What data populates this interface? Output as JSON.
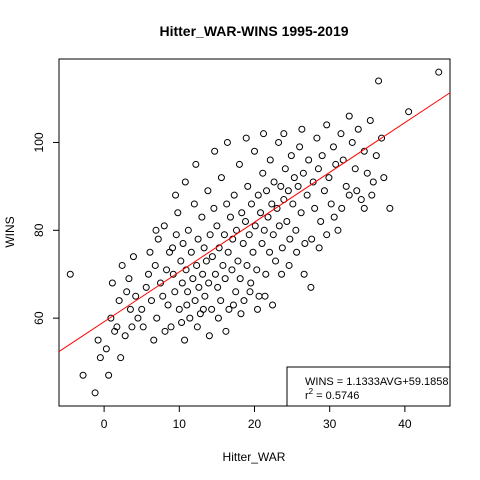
{
  "chart_data": {
    "type": "scatter",
    "title": "Hitter_WAR-WINS 1995-2019",
    "xlabel": "Hitter_WAR",
    "ylabel": "WINS",
    "xlim": [
      -6,
      46
    ],
    "ylim": [
      40,
      119
    ],
    "x_ticks": [
      0,
      10,
      20,
      30,
      40
    ],
    "y_ticks": [
      60,
      80,
      100
    ],
    "grid": false,
    "regression_line": {
      "slope": 1.1333,
      "intercept": 59.1858,
      "color": "#ff0000"
    },
    "legend": {
      "position": "bottom-right",
      "equation": "WINS = 1.1333AVG+59.1858",
      "r2_prefix": "r",
      "r2_sup": "2",
      "r2_value": " = 0.5746"
    },
    "point_color": "#000000",
    "points": [
      [
        -4.5,
        70
      ],
      [
        -2.8,
        47
      ],
      [
        -1.2,
        43
      ],
      [
        -0.8,
        55
      ],
      [
        -0.5,
        51
      ],
      [
        0.3,
        53
      ],
      [
        0.6,
        47
      ],
      [
        0.9,
        60
      ],
      [
        1.1,
        68
      ],
      [
        1.4,
        57
      ],
      [
        1.7,
        58
      ],
      [
        2.2,
        51
      ],
      [
        2.0,
        64
      ],
      [
        2.4,
        72
      ],
      [
        2.8,
        56
      ],
      [
        3.0,
        66
      ],
      [
        3.3,
        69
      ],
      [
        3.5,
        62
      ],
      [
        3.7,
        58
      ],
      [
        3.9,
        74
      ],
      [
        4.2,
        65
      ],
      [
        4.5,
        60
      ],
      [
        5.0,
        62
      ],
      [
        5.2,
        58
      ],
      [
        5.6,
        67
      ],
      [
        5.9,
        70
      ],
      [
        6.1,
        75
      ],
      [
        6.3,
        64
      ],
      [
        6.6,
        55
      ],
      [
        6.8,
        72
      ],
      [
        7.0,
        60
      ],
      [
        7.2,
        78
      ],
      [
        7.5,
        68
      ],
      [
        7.8,
        65
      ],
      [
        8.0,
        81
      ],
      [
        8.3,
        71
      ],
      [
        8.5,
        63
      ],
      [
        8.7,
        75
      ],
      [
        8.9,
        58
      ],
      [
        9.2,
        70
      ],
      [
        9.4,
        66
      ],
      [
        9.6,
        79
      ],
      [
        9.8,
        84
      ],
      [
        10.0,
        62
      ],
      [
        10.2,
        73
      ],
      [
        10.4,
        68
      ],
      [
        10.5,
        77
      ],
      [
        10.7,
        55
      ],
      [
        10.9,
        71
      ],
      [
        11.1,
        66
      ],
      [
        11.2,
        80
      ],
      [
        11.4,
        60
      ],
      [
        11.6,
        75
      ],
      [
        11.8,
        69
      ],
      [
        12.0,
        86
      ],
      [
        12.1,
        64
      ],
      [
        12.3,
        72
      ],
      [
        12.5,
        78
      ],
      [
        12.6,
        67
      ],
      [
        12.8,
        61
      ],
      [
        13.0,
        83
      ],
      [
        13.1,
        70
      ],
      [
        13.3,
        76
      ],
      [
        13.4,
        65
      ],
      [
        13.6,
        73
      ],
      [
        13.8,
        89
      ],
      [
        13.9,
        68
      ],
      [
        14.1,
        79
      ],
      [
        14.3,
        62
      ],
      [
        14.4,
        74
      ],
      [
        14.6,
        85
      ],
      [
        14.8,
        70
      ],
      [
        15.0,
        81
      ],
      [
        15.1,
        67
      ],
      [
        15.3,
        76
      ],
      [
        15.5,
        64
      ],
      [
        15.6,
        92
      ],
      [
        15.8,
        72
      ],
      [
        16.0,
        79
      ],
      [
        16.1,
        69
      ],
      [
        16.3,
        86
      ],
      [
        16.5,
        75
      ],
      [
        16.6,
        62
      ],
      [
        16.8,
        83
      ],
      [
        17.0,
        71
      ],
      [
        17.1,
        78
      ],
      [
        17.3,
        88
      ],
      [
        17.5,
        66
      ],
      [
        17.6,
        80
      ],
      [
        17.8,
        73
      ],
      [
        18.0,
        95
      ],
      [
        18.1,
        69
      ],
      [
        18.3,
        84
      ],
      [
        18.5,
        77
      ],
      [
        18.6,
        64
      ],
      [
        18.8,
        82
      ],
      [
        19.0,
        72
      ],
      [
        19.1,
        90
      ],
      [
        19.3,
        79
      ],
      [
        19.5,
        68
      ],
      [
        19.6,
        86
      ],
      [
        19.8,
        75
      ],
      [
        20.0,
        98
      ],
      [
        20.1,
        81
      ],
      [
        20.3,
        71
      ],
      [
        20.5,
        88
      ],
      [
        20.6,
        65
      ],
      [
        20.8,
        84
      ],
      [
        21.0,
        77
      ],
      [
        21.1,
        93
      ],
      [
        21.3,
        80
      ],
      [
        21.5,
        70
      ],
      [
        21.6,
        89
      ],
      [
        21.8,
        83
      ],
      [
        22.0,
        75
      ],
      [
        22.1,
        96
      ],
      [
        22.3,
        86
      ],
      [
        22.5,
        79
      ],
      [
        22.6,
        91
      ],
      [
        22.8,
        73
      ],
      [
        23.0,
        85
      ],
      [
        23.2,
        100
      ],
      [
        23.3,
        81
      ],
      [
        23.5,
        90
      ],
      [
        23.7,
        76
      ],
      [
        23.9,
        87
      ],
      [
        24.1,
        94
      ],
      [
        24.3,
        82
      ],
      [
        24.5,
        89
      ],
      [
        24.7,
        78
      ],
      [
        24.9,
        97
      ],
      [
        25.1,
        86
      ],
      [
        25.3,
        92
      ],
      [
        25.5,
        80
      ],
      [
        25.8,
        90
      ],
      [
        26.0,
        99
      ],
      [
        26.2,
        84
      ],
      [
        26.5,
        93
      ],
      [
        26.7,
        77
      ],
      [
        27.0,
        88
      ],
      [
        27.2,
        96
      ],
      [
        27.5,
        67
      ],
      [
        27.8,
        91
      ],
      [
        28.0,
        85
      ],
      [
        28.3,
        101
      ],
      [
        28.5,
        94
      ],
      [
        28.8,
        82
      ],
      [
        29.0,
        97
      ],
      [
        29.3,
        89
      ],
      [
        29.6,
        104
      ],
      [
        29.9,
        92
      ],
      [
        30.2,
        86
      ],
      [
        30.5,
        99
      ],
      [
        30.8,
        95
      ],
      [
        31.1,
        80
      ],
      [
        31.5,
        102
      ],
      [
        31.8,
        96
      ],
      [
        32.2,
        90
      ],
      [
        32.6,
        106
      ],
      [
        33.0,
        100
      ],
      [
        33.4,
        94
      ],
      [
        33.8,
        103
      ],
      [
        34.2,
        87
      ],
      [
        34.6,
        98
      ],
      [
        35.0,
        93
      ],
      [
        35.4,
        105
      ],
      [
        35.8,
        91
      ],
      [
        36.2,
        97
      ],
      [
        36.5,
        114
      ],
      [
        36.9,
        101
      ],
      [
        37.2,
        92
      ],
      [
        38.0,
        85
      ],
      [
        40.5,
        107
      ],
      [
        44.5,
        116
      ],
      [
        6.9,
        80
      ],
      [
        8.1,
        57
      ],
      [
        9.1,
        76
      ],
      [
        10.3,
        59
      ],
      [
        11.0,
        63
      ],
      [
        12.4,
        58
      ],
      [
        13.2,
        62
      ],
      [
        14.0,
        56
      ],
      [
        15.2,
        60
      ],
      [
        16.2,
        57
      ],
      [
        17.2,
        63
      ],
      [
        18.2,
        61
      ],
      [
        19.4,
        66
      ],
      [
        20.4,
        62
      ],
      [
        21.4,
        65
      ],
      [
        22.4,
        63
      ],
      [
        23.6,
        70
      ],
      [
        24.6,
        72
      ],
      [
        25.6,
        75
      ],
      [
        26.6,
        70
      ],
      [
        27.6,
        78
      ],
      [
        28.6,
        76
      ],
      [
        29.6,
        79
      ],
      [
        30.6,
        83
      ],
      [
        31.6,
        85
      ],
      [
        32.6,
        88
      ],
      [
        33.6,
        89
      ],
      [
        34.6,
        85
      ],
      [
        35.6,
        88
      ],
      [
        9.5,
        88
      ],
      [
        10.8,
        91
      ],
      [
        12.2,
        95
      ],
      [
        14.7,
        98
      ],
      [
        16.4,
        100
      ],
      [
        18.9,
        101
      ],
      [
        21.2,
        102
      ],
      [
        23.9,
        102
      ],
      [
        26.3,
        103
      ]
    ]
  }
}
